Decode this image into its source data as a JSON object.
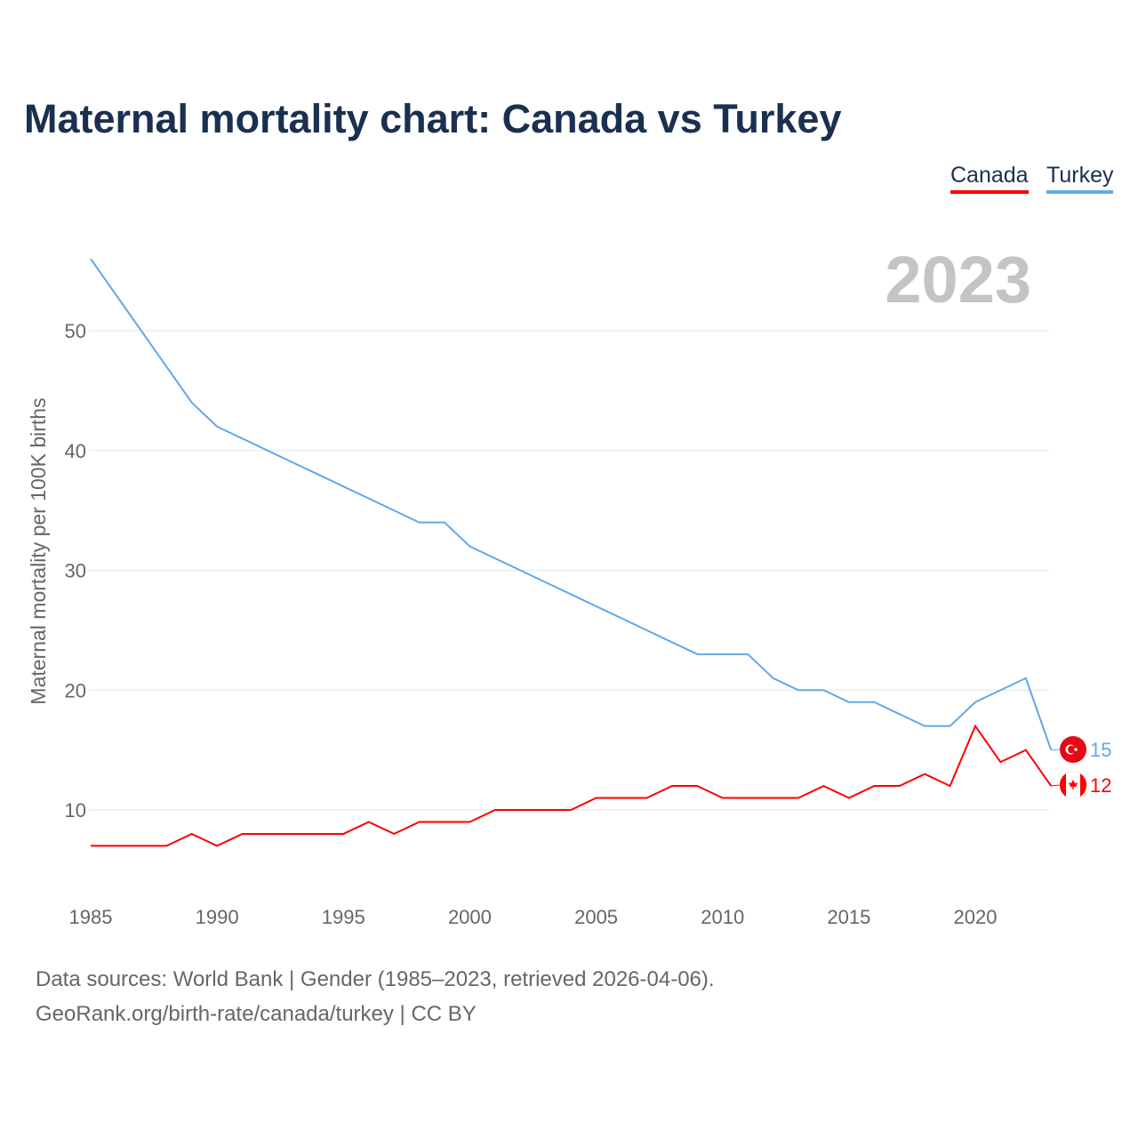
{
  "title": "Maternal mortality chart: Canada vs Turkey",
  "legend": [
    "Canada",
    "Turkey"
  ],
  "colors": {
    "Canada": "#ff0000",
    "Turkey": "#5fa8ec",
    "title": "#1b3050",
    "year": "#c4c4c4"
  },
  "year_label": "2023",
  "end_labels": {
    "Canada": "12",
    "Turkey": "15"
  },
  "footer": {
    "line1": "Data sources: World Bank | Gender (1985–2023, retrieved 2026-04-06).",
    "line2": "GeoRank.org/birth-rate/canada/turkey | CC BY"
  },
  "chart_data": {
    "type": "line",
    "title": "Maternal mortality chart: Canada vs Turkey",
    "xlabel": "",
    "ylabel": "Maternal mortality per 100K births",
    "x": [
      1985,
      1986,
      1987,
      1988,
      1989,
      1990,
      1991,
      1992,
      1993,
      1994,
      1995,
      1996,
      1997,
      1998,
      1999,
      2000,
      2001,
      2002,
      2003,
      2004,
      2005,
      2006,
      2007,
      2008,
      2009,
      2010,
      2011,
      2012,
      2013,
      2014,
      2015,
      2016,
      2017,
      2018,
      2019,
      2020,
      2021,
      2022,
      2023
    ],
    "series": [
      {
        "name": "Canada",
        "values": [
          7,
          7,
          7,
          7,
          8,
          7,
          8,
          8,
          8,
          8,
          8,
          9,
          8,
          9,
          9,
          9,
          10,
          10,
          10,
          10,
          11,
          11,
          11,
          12,
          12,
          11,
          11,
          11,
          11,
          12,
          11,
          12,
          12,
          13,
          12,
          17,
          14,
          15,
          12
        ]
      },
      {
        "name": "Turkey",
        "values": [
          56,
          53,
          50,
          47,
          44,
          42,
          41,
          40,
          39,
          38,
          37,
          36,
          35,
          34,
          34,
          32,
          31,
          30,
          29,
          28,
          27,
          26,
          25,
          24,
          23,
          23,
          23,
          21,
          20,
          20,
          19,
          19,
          18,
          17,
          17,
          19,
          20,
          21,
          15
        ]
      }
    ],
    "xticks": [
      "1985",
      "1990",
      "1995",
      "2000",
      "2005",
      "2010",
      "2015",
      "2020"
    ],
    "yticks": [
      "10",
      "20",
      "30",
      "40",
      "50"
    ],
    "ylim": [
      3.4,
      58
    ],
    "xlim": [
      1985,
      2023
    ],
    "grid": true,
    "legend_position": "top-right"
  }
}
